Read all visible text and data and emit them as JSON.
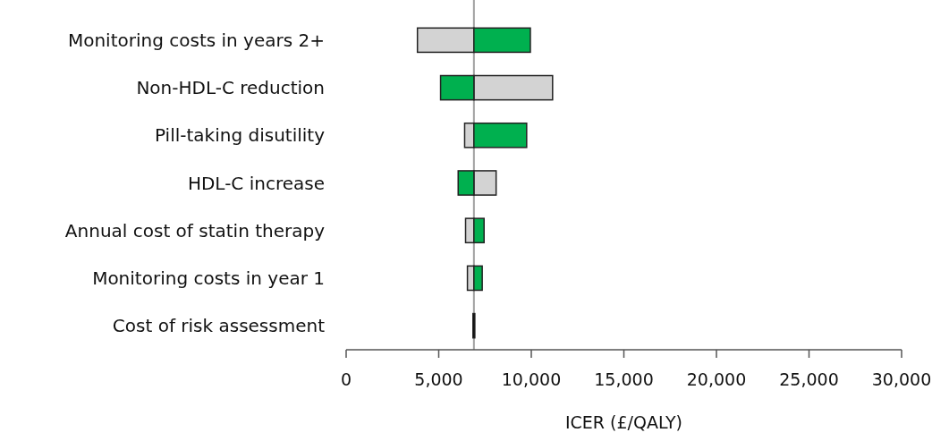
{
  "chart_data": {
    "type": "bar",
    "orientation": "horizontal",
    "xlabel": "ICER (£/QALY)",
    "categories": [
      "Monitoring costs in years 2+",
      "Non-HDL-C reduction",
      "Pill-taking disutility",
      "HDL-C increase",
      "Annual cost of statin therapy",
      "Monitoring costs in year 1",
      "Cost of risk assessment"
    ],
    "series": [
      {
        "colors": [
          "#d3d3d3",
          "#d3d3d3",
          "#d3d3d3",
          "#d3d3d3",
          "#d3d3d3",
          "#d3d3d3",
          "#000000"
        ],
        "base": [
          3850,
          6900,
          6400,
          6900,
          6450,
          6550,
          6850
        ],
        "values": [
          3050,
          4250,
          500,
          1200,
          450,
          350,
          100
        ]
      },
      {
        "colors": [
          "#00b04f",
          "#00b04f",
          "#00b04f",
          "#00b04f",
          "#00b04f",
          "#00b04f",
          null
        ],
        "base": [
          6900,
          5100,
          6900,
          6050,
          6900,
          6900,
          null
        ],
        "values": [
          3050,
          1800,
          2850,
          850,
          550,
          450,
          null
        ]
      }
    ],
    "xlim": [
      0,
      30000
    ],
    "xticks": [
      {
        "value": 0,
        "label": "0"
      },
      {
        "value": 5000,
        "label": "5,000"
      },
      {
        "value": 10000,
        "label": "10,000"
      },
      {
        "value": 15000,
        "label": "15,000"
      },
      {
        "value": 20000,
        "label": "20,000"
      },
      {
        "value": 25000,
        "label": "25,000"
      },
      {
        "value": 30000,
        "label": "30,000"
      }
    ],
    "ref_lines": [
      {
        "axis": "x",
        "value": 6900,
        "color": "#a0a0a0"
      }
    ],
    "grid": false
  }
}
